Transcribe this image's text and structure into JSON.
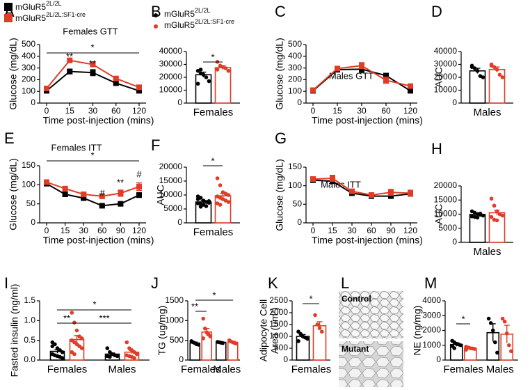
{
  "chart_data": [
    {
      "type": "line",
      "label": "A",
      "title": "Females GTT",
      "ylabel": "Glucose (mg/dL)",
      "xlabel": "Time post-injection (mins)",
      "categories": [
        "0",
        "15",
        "30",
        "60",
        "120"
      ],
      "ylim": [
        0,
        500
      ],
      "yticks": [
        0,
        100,
        200,
        300,
        400,
        500
      ],
      "series": [
        {
          "name": "mGluR5",
          "name_sup": "2L/2L",
          "color": "#000000",
          "values": [
            105,
            270,
            260,
            170,
            105
          ],
          "errors": [
            8,
            20,
            25,
            12,
            8
          ]
        },
        {
          "name": "mGluR5",
          "name_sup": "2L/2L:SF1-cre",
          "color": "#e03c28",
          "values": [
            125,
            365,
            330,
            210,
            135
          ],
          "errors": [
            10,
            10,
            12,
            10,
            10
          ]
        }
      ],
      "annotations": [
        "**",
        "**",
        "*"
      ]
    },
    {
      "type": "bar",
      "label": "B",
      "categories": [
        "Females"
      ],
      "ylim": [
        0,
        40000
      ],
      "yticks": [
        0,
        10000,
        20000,
        30000,
        40000
      ],
      "series": [
        {
          "name": "mGluR5",
          "name_sup": "2L/2L",
          "color": "#000000",
          "values": [
            22000
          ],
          "errors": [
            2000
          ],
          "points": [
            [
              25000,
              23000,
              22000,
              20000,
              17000,
              15000,
              26000
            ]
          ]
        },
        {
          "name": "mGluR5",
          "name_sup": "2L/2L:SF1-cre",
          "color": "#e03c28",
          "values": [
            27500
          ],
          "errors": [
            1500
          ],
          "points": [
            [
              32000,
              29000,
              28000,
              27000,
              25000,
              26000
            ]
          ]
        }
      ],
      "annotations": [
        "*"
      ]
    },
    {
      "type": "line",
      "label": "C",
      "title": "Males GTT",
      "ylabel": "Glucose (mg/dL)",
      "xlabel": "Time post-injection (mins)",
      "categories": [
        "0",
        "15",
        "30",
        "60",
        "120"
      ],
      "ylim": [
        0,
        500
      ],
      "yticks": [
        0,
        100,
        200,
        300,
        400,
        500
      ],
      "series": [
        {
          "color": "#000000",
          "values": [
            105,
            285,
            290,
            235,
            105
          ],
          "errors": [
            8,
            15,
            30,
            15,
            8
          ]
        },
        {
          "color": "#e03c28",
          "values": [
            110,
            295,
            320,
            195,
            145
          ],
          "errors": [
            8,
            15,
            25,
            25,
            8
          ]
        }
      ]
    },
    {
      "type": "bar",
      "label": "D",
      "ylabel": "AUC",
      "categories": [
        "Males"
      ],
      "ylim": [
        0,
        40000
      ],
      "yticks": [
        0,
        10000,
        20000,
        30000,
        40000
      ],
      "series": [
        {
          "color": "#000000",
          "values": [
            25000
          ],
          "errors": [
            2000
          ],
          "points": [
            [
              29000,
              27000,
              25000,
              21000,
              20000,
              28000
            ]
          ]
        },
        {
          "color": "#e03c28",
          "values": [
            26000
          ],
          "errors": [
            2000
          ],
          "points": [
            [
              30000,
              28000,
              26000,
              22000,
              20000,
              29000
            ]
          ]
        }
      ]
    },
    {
      "type": "line",
      "label": "E",
      "title": "Females ITT",
      "ylabel": "Glucose (mg/dL)",
      "xlabel": "Time post-injection (mins)",
      "categories": [
        "0",
        "15",
        "30",
        "60",
        "90",
        "120"
      ],
      "ylim": [
        0,
        150
      ],
      "yticks": [
        0,
        50,
        100,
        150
      ],
      "series": [
        {
          "color": "#000000",
          "values": [
            103,
            75,
            65,
            45,
            50,
            73
          ],
          "errors": [
            3,
            4,
            3,
            3,
            4,
            6
          ]
        },
        {
          "color": "#e03c28",
          "values": [
            107,
            90,
            75,
            70,
            78,
            95
          ],
          "errors": [
            3,
            4,
            4,
            6,
            8,
            10
          ]
        }
      ],
      "annotations": [
        "#",
        "**",
        "#",
        "*"
      ]
    },
    {
      "type": "bar",
      "label": "F",
      "ylabel": "AUC",
      "categories": [
        "Females"
      ],
      "ylim": [
        0,
        20000
      ],
      "yticks": [
        0,
        5000,
        10000,
        15000,
        20000
      ],
      "series": [
        {
          "color": "#000000",
          "values": [
            7500
          ],
          "errors": [
            500
          ],
          "points": [
            [
              9500,
              9000,
              8000,
              7500,
              7200,
              7000,
              6800,
              6500,
              6000,
              7800,
              8500,
              5800
            ]
          ]
        },
        {
          "color": "#e03c28",
          "values": [
            9700
          ],
          "errors": [
            800
          ],
          "points": [
            [
              16000,
              13500,
              11000,
              10500,
              10000,
              9500,
              9000,
              8500,
              8000,
              7500,
              7000,
              6500
            ]
          ]
        }
      ],
      "annotations": [
        "*"
      ]
    },
    {
      "type": "line",
      "label": "G",
      "title": "Males ITT",
      "ylabel": "Glucose (mg/dL)",
      "xlabel": "Time post-injection (mins)",
      "categories": [
        "0",
        "15",
        "30",
        "60",
        "90",
        "120"
      ],
      "ylim": [
        0,
        150
      ],
      "yticks": [
        0,
        50,
        100,
        150
      ],
      "series": [
        {
          "color": "#000000",
          "values": [
            115,
            112,
            80,
            72,
            72,
            78
          ],
          "errors": [
            3,
            3,
            4,
            4,
            4,
            6
          ]
        },
        {
          "color": "#e03c28",
          "values": [
            118,
            120,
            85,
            75,
            82,
            80
          ],
          "errors": [
            3,
            8,
            5,
            5,
            8,
            8
          ]
        }
      ]
    },
    {
      "type": "bar",
      "label": "H",
      "ylabel": "AUC",
      "categories": [
        "Males"
      ],
      "ylim": [
        0,
        20000
      ],
      "yticks": [
        0,
        5000,
        10000,
        15000,
        20000
      ],
      "series": [
        {
          "color": "#000000",
          "values": [
            9900
          ],
          "errors": [
            500
          ],
          "points": [
            [
              11000,
              10500,
              10000,
              9800,
              9500,
              9200,
              9000,
              8800,
              10200
            ]
          ]
        },
        {
          "color": "#e03c28",
          "values": [
            10500
          ],
          "errors": [
            900
          ],
          "points": [
            [
              15500,
              13000,
              11000,
              10000,
              9500,
              9000,
              8000,
              7800
            ]
          ]
        }
      ]
    },
    {
      "type": "bar",
      "label": "I",
      "ylabel": "Fasted insulin (ng/ml)",
      "categories": [
        "Females",
        "Males"
      ],
      "ylim": [
        0,
        1.5
      ],
      "yticks": [
        {
          "value": 0,
          "label": "0.0"
        },
        0.5,
        {
          "value": 1,
          "label": "1.0"
        },
        1.5
      ],
      "series": [
        {
          "color": "#000000",
          "values": [
            0.22,
            0.15
          ],
          "errors": [
            0.05,
            0.03
          ],
          "points": [
            [
              0.45,
              0.4,
              0.3,
              0.25,
              0.2,
              0.15,
              0.12,
              0.1,
              0.08,
              0.05,
              0.35
            ],
            [
              0.3,
              0.2,
              0.15,
              0.12,
              0.1,
              0.1,
              0.08
            ]
          ]
        },
        {
          "color": "#e03c28",
          "values": [
            0.52,
            0.2
          ],
          "errors": [
            0.1,
            0.04
          ],
          "points": [
            [
              1.2,
              0.95,
              0.75,
              0.6,
              0.55,
              0.5,
              0.45,
              0.4,
              0.35,
              0.3,
              0.2,
              0.15
            ],
            [
              0.45,
              0.3,
              0.25,
              0.2,
              0.15,
              0.12,
              0.1,
              0.08,
              0.05
            ]
          ]
        }
      ],
      "annotations": [
        "**",
        "***",
        "*"
      ]
    },
    {
      "type": "bar",
      "label": "J",
      "ylabel": "TG (ug/mg)",
      "categories": [
        "Females",
        "Males"
      ],
      "ylim": [
        0,
        1500
      ],
      "yticks": [
        0,
        500,
        1000,
        1500
      ],
      "series": [
        {
          "color": "#000000",
          "values": [
            430,
            450
          ],
          "errors": [
            25,
            10
          ],
          "points": [
            [
              480,
              450,
              430,
              400,
              390
            ],
            [
              460,
              450,
              440,
              430
            ]
          ]
        },
        {
          "color": "#e03c28",
          "values": [
            710,
            450
          ],
          "errors": [
            90,
            25
          ],
          "points": [
            [
              1050,
              800,
              700,
              650,
              600,
              550
            ],
            [
              500,
              470,
              450,
              430,
              420
            ]
          ]
        }
      ],
      "annotations": [
        "**",
        "*"
      ]
    },
    {
      "type": "bar",
      "label": "K",
      "ylabel": [
        "Adipocyte Cell",
        "Area (um²)"
      ],
      "categories": [
        "Females"
      ],
      "ylim": [
        0,
        2500
      ],
      "yticks": [
        0,
        500,
        1000,
        1500,
        2000,
        2500
      ],
      "series": [
        {
          "color": "#000000",
          "values": [
            1000
          ],
          "errors": [
            80
          ],
          "points": [
            [
              1200,
              1100,
              1000,
              950,
              900,
              800
            ]
          ]
        },
        {
          "color": "#e03c28",
          "values": [
            1450
          ],
          "errors": [
            170
          ],
          "points": [
            [
              1900,
              1500,
              1350,
              1200
            ]
          ]
        }
      ],
      "annotations": [
        "*"
      ]
    },
    {
      "type": "image",
      "label": "L",
      "labels": [
        "Control",
        "Mutant"
      ]
    },
    {
      "type": "bar",
      "label": "M",
      "ylabel": "NE (ng/mg)",
      "categories": [
        "Females",
        "Males"
      ],
      "ylim": [
        0,
        4000
      ],
      "yticks": [
        0,
        1000,
        2000,
        3000,
        4000
      ],
      "series": [
        {
          "color": "#000000",
          "values": [
            1050,
            1850
          ],
          "errors": [
            120,
            600
          ],
          "points": [
            [
              1300,
              1200,
              1100,
              1050,
              1000,
              950,
              800
            ],
            [
              2800,
              2500,
              2000,
              1200,
              500
            ]
          ]
        },
        {
          "color": "#e03c28",
          "values": [
            800,
            1750
          ],
          "errors": [
            40,
            600
          ],
          "points": [
            [
              900,
              850,
              800,
              780,
              750,
              700
            ],
            [
              2800,
              2600,
              1800,
              1000,
              600
            ]
          ]
        }
      ],
      "annotations": [
        "*"
      ]
    }
  ]
}
